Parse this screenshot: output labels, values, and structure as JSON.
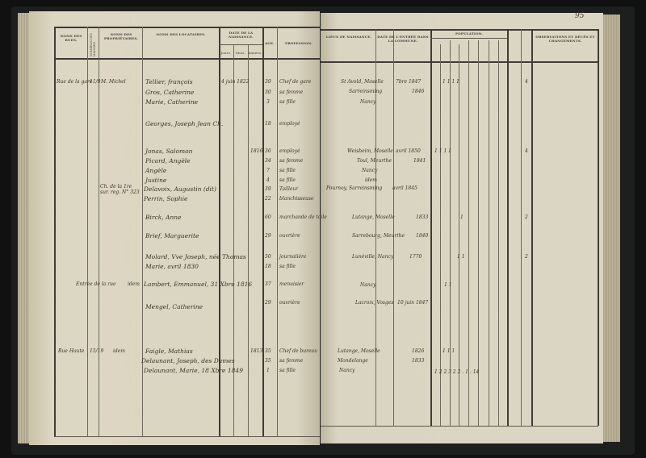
{
  "page_number": "95",
  "left_headers": {
    "rues": "NOMS DES RUES.",
    "numeros": "NUMÉROS DES MAISONS",
    "proprietaires": "NOMS DES PROPRIÉTAIRES.",
    "locataires": "NOMS DES LOCATAIRES.",
    "date_naissance": "DATE DE LA NAISSANCE.",
    "jours": "Jours.",
    "mois": "Mois.",
    "annees": "Années.",
    "age": "AGE.",
    "profession": "PROFESSION."
  },
  "right_headers": {
    "lieux": "LIEUX DE NAISSANCE.",
    "date_entree": "DATE DE L'ENTRÉE DANS LA COMMUNE.",
    "population": "POPULATION.",
    "observations": "OBSERVATIONS ET DÉCÈS ET CHANGEMENTS."
  },
  "left_entries": [
    {
      "rue": "Rue de la gare",
      "numero": "11/9",
      "proprietaire": "M. Michel",
      "locataire": "Tellier, françois",
      "date": "4 juin 1822",
      "age": "39",
      "profession": "Chef de gare"
    },
    {
      "locataire": "Gros, Catherine",
      "age": "30",
      "profession": "sa femme"
    },
    {
      "locataire": "Marie, Catherine",
      "age": "3",
      "profession": "sa fille"
    },
    {
      "locataire": "Georges, Joseph Jean Ch.",
      "age": "18",
      "profession": "employé"
    },
    {
      "locataire": "Jonas, Salomon",
      "date": "1816",
      "age": "36",
      "profession": "employé"
    },
    {
      "locataire": "Picard, Angèle",
      "age": "34",
      "profession": "sa femme"
    },
    {
      "locataire": "Angèle",
      "age": "7",
      "profession": "sa fille"
    },
    {
      "locataire": "Justine",
      "age": "4",
      "profession": "sa fille"
    },
    {
      "proprietaire": "Ch. de la 1re sur. reg. N° 323",
      "locataire": "Delavoix, Augustin (dit)",
      "age": "39",
      "profession": "Tailleur"
    },
    {
      "locataire": "Perrin, Sophie",
      "age": "22",
      "profession": "blanchisseuse"
    },
    {
      "locataire": "Birck, Anne",
      "age": "60",
      "profession": "marchande de toile"
    },
    {
      "locataire": "Brief, Marguerite",
      "age": "29",
      "profession": "ouvrière"
    },
    {
      "locataire": "Molard, Vve Joseph, née Thomas",
      "age": "50",
      "profession": "journalière"
    },
    {
      "locataire": "Marie, avril 1830",
      "age": "18",
      "profession": "sa fille"
    },
    {
      "rue": "Entrée de la rue",
      "proprietaire": "idem",
      "locataire": "Lambert, Emmanuel, 31 Xbre 1816",
      "age": "37",
      "profession": "menuisier"
    },
    {
      "locataire": "Mengel, Catherine",
      "age": "29",
      "profession": "ouvrière"
    },
    {
      "rue": "Rue Haute",
      "numero": "15/19",
      "proprietaire": "idem",
      "locataire": "Faigle, Mathias",
      "date": "1813",
      "age": "35",
      "profession": "Chef de bureau"
    },
    {
      "locataire": "Delaunant, Joseph, des Dames",
      "age": "35",
      "profession": "sa femme"
    },
    {
      "locataire": "Delaunant, Marie, 18 Xbre 1849",
      "age": "1",
      "profession": "sa fille"
    }
  ],
  "right_entries": [
    {
      "lieu": "St Avold, Moselle",
      "date": "7bre 1847",
      "pop": "1  1  1 1",
      "obs": "4"
    },
    {
      "lieu": "Sarreinsming",
      "date": "1846"
    },
    {
      "lieu": "Nancy"
    },
    {
      "lieu": "Weisbeim, Moselle",
      "date": "avril 1850",
      "pop": "1  1  1 1",
      "obs": "4"
    },
    {
      "lieu": "Toul, Meurthe",
      "date": "1841"
    },
    {
      "lieu": "Nancy"
    },
    {
      "lieu": "idem"
    },
    {
      "lieu": "Pournoy, Sarreinsming",
      "date": "avril 1845"
    },
    {
      "lieu": "Lutange, Moselle",
      "date": "1833",
      "pop": "1",
      "obs": "2"
    },
    {
      "lieu": "Sarrebourg, Meurthe",
      "date": "1840"
    },
    {
      "lieu": "Lunéville, Nancy",
      "date": "1770",
      "pop": "1   1",
      "obs": "2"
    },
    {
      "lieu": "Nancy",
      "pop": "1  1"
    },
    {
      "lieu": "Lacroix, Vosges",
      "date": "10 juin 1847"
    },
    {
      "lieu": "Lutange, Moselle",
      "date": "1826",
      "pop": "1   1 1"
    },
    {
      "lieu": "Mondelange",
      "date": "1833"
    },
    {
      "lieu": "Nancy"
    }
  ],
  "totals": "1  2  2  3  2  2  .  1  .  14"
}
